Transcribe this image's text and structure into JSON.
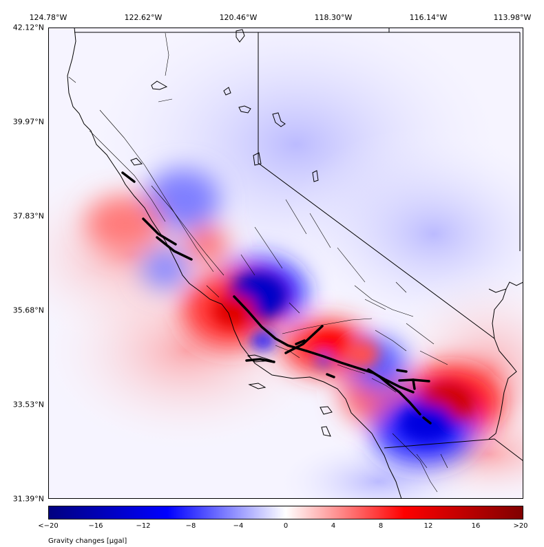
{
  "map": {
    "title": "",
    "lon_labels": [
      "124.78°W",
      "122.62°W",
      "120.46°W",
      "118.30°W",
      "116.14°W",
      "113.98°W"
    ],
    "lat_labels": [
      "42.12°N",
      "39.97°N",
      "37.83°N",
      "35.68°N",
      "33.53°N",
      "31.39°N"
    ],
    "lon_range": [
      -124.78,
      -113.98
    ],
    "lat_range": [
      31.39,
      42.12
    ]
  },
  "colorbar": {
    "tick_labels": [
      "<−20",
      "−16",
      "−12",
      "−8",
      "−4",
      "0",
      "4",
      "8",
      "12",
      "16",
      ">20"
    ],
    "label": "Gravity changes [μgal]",
    "range": [
      -20,
      20
    ],
    "colors": {
      "min": "#000080",
      "neg": "#0000ff",
      "zero": "#ffffff",
      "pos": "#ff0000",
      "max": "#800000"
    }
  },
  "layers": {
    "coastline_color": "#000000",
    "fault_color": "#000000",
    "rupture_color": "#000000"
  }
}
